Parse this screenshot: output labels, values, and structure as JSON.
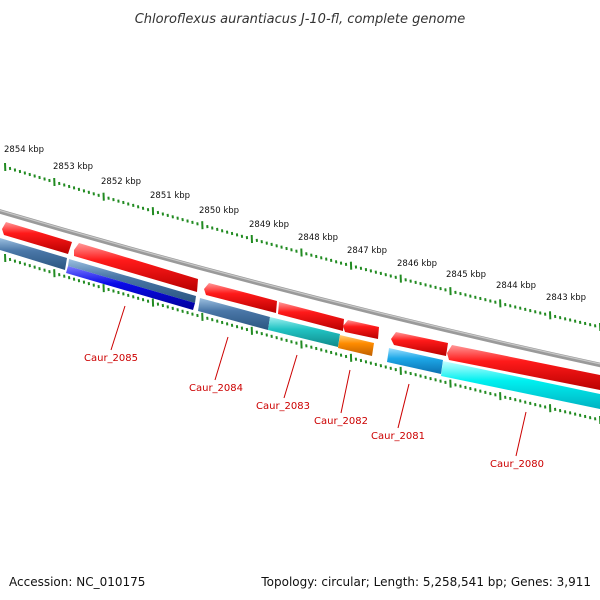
{
  "title": "Chloroflexus aurantiacus J-10-fl, complete genome",
  "footer": {
    "accession": "Accession: NC_010175",
    "summary": "Topology: circular; Length: 5,258,541 bp; Genes: 3,911"
  },
  "colors": {
    "backbone": "#808080",
    "tick": "#228b22",
    "label": "#cc0000",
    "cds_red": "#e8141a",
    "steel_blue": "#4a77a8",
    "blue": "#1010e0",
    "teal": "#20c8c8",
    "orange": "#ff8c00",
    "light_blue": "#1ea8e8",
    "cyan": "#00f0f0"
  },
  "scale": {
    "unit": "kbp",
    "ticks": [
      {
        "label": "2854 kbp",
        "value": 2854
      },
      {
        "label": "2853 kbp",
        "value": 2853
      },
      {
        "label": "2852 kbp",
        "value": 2852
      },
      {
        "label": "2851 kbp",
        "value": 2851
      },
      {
        "label": "2850 kbp",
        "value": 2850
      },
      {
        "label": "2849 kbp",
        "value": 2849
      },
      {
        "label": "2848 kbp",
        "value": 2848
      },
      {
        "label": "2847 kbp",
        "value": 2847
      },
      {
        "label": "2846 kbp",
        "value": 2846
      },
      {
        "label": "2845 kbp",
        "value": 2845
      },
      {
        "label": "2844 kbp",
        "value": 2844
      },
      {
        "label": "2843 kbp",
        "value": 2843
      }
    ]
  },
  "genes": [
    {
      "label": "Caur_2085"
    },
    {
      "label": "Caur_2084"
    },
    {
      "label": "Caur_2083"
    },
    {
      "label": "Caur_2082"
    },
    {
      "label": "Caur_2081"
    },
    {
      "label": "Caur_2080"
    }
  ]
}
